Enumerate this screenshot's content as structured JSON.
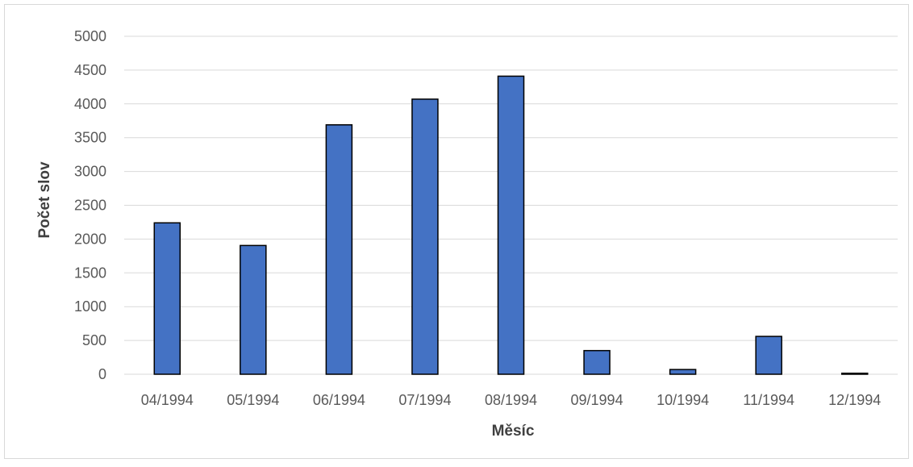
{
  "chart_data": {
    "type": "bar",
    "categories": [
      "04/1994",
      "05/1994",
      "06/1994",
      "07/1994",
      "08/1994",
      "09/1994",
      "10/1994",
      "11/1994",
      "12/1994"
    ],
    "values": [
      2240,
      1905,
      3690,
      4070,
      4410,
      350,
      70,
      560,
      15
    ],
    "xlabel": "Měsíc",
    "ylabel": "Počet slov",
    "ylim": [
      0,
      5000
    ],
    "yticks": [
      "0",
      "500",
      "1000",
      "1500",
      "2000",
      "2500",
      "3000",
      "3500",
      "4000",
      "4500",
      "5000"
    ],
    "grid": true,
    "bar_color": "#4472c4",
    "bar_edge_color": "#000000"
  }
}
